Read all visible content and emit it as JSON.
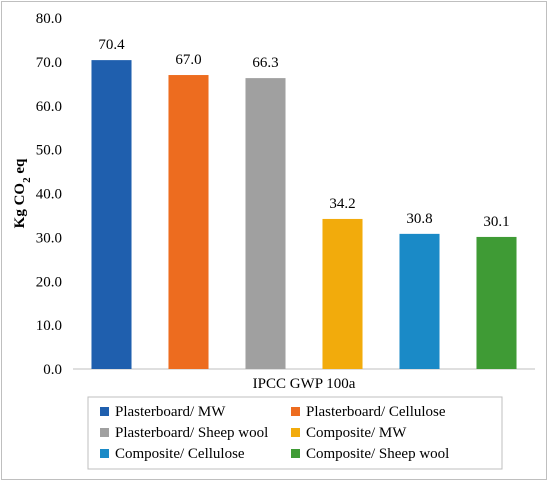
{
  "chart_data": {
    "type": "bar",
    "title": "",
    "xlabel": "IPCC GWP 100a",
    "ylabel": "Kg CO",
    "ylabel_sub": "2",
    "ylabel_suffix": " eq",
    "ylim": [
      0,
      80
    ],
    "yticks": [
      "0.0",
      "10.0",
      "20.0",
      "30.0",
      "40.0",
      "50.0",
      "60.0",
      "70.0",
      "80.0"
    ],
    "grid": false,
    "legend_position": "bottom",
    "series": [
      {
        "name": "Plasterboard/ MW",
        "value": 70.4,
        "label": "70.4",
        "color": "#1f5fae"
      },
      {
        "name": "Plasterboard/ Cellulose",
        "value": 67.0,
        "label": "67.0",
        "color": "#ed6c1f"
      },
      {
        "name": "Plasterboard/ Sheep wool",
        "value": 66.3,
        "label": "66.3",
        "color": "#a0a0a0"
      },
      {
        "name": "Composite/ MW",
        "value": 34.2,
        "label": "34.2",
        "color": "#f2ab0c"
      },
      {
        "name": "Composite/ Cellulose",
        "value": 30.8,
        "label": "30.8",
        "color": "#1a8ac7"
      },
      {
        "name": "Composite/ Sheep wool",
        "value": 30.1,
        "label": "30.1",
        "color": "#3f9b35"
      }
    ]
  }
}
